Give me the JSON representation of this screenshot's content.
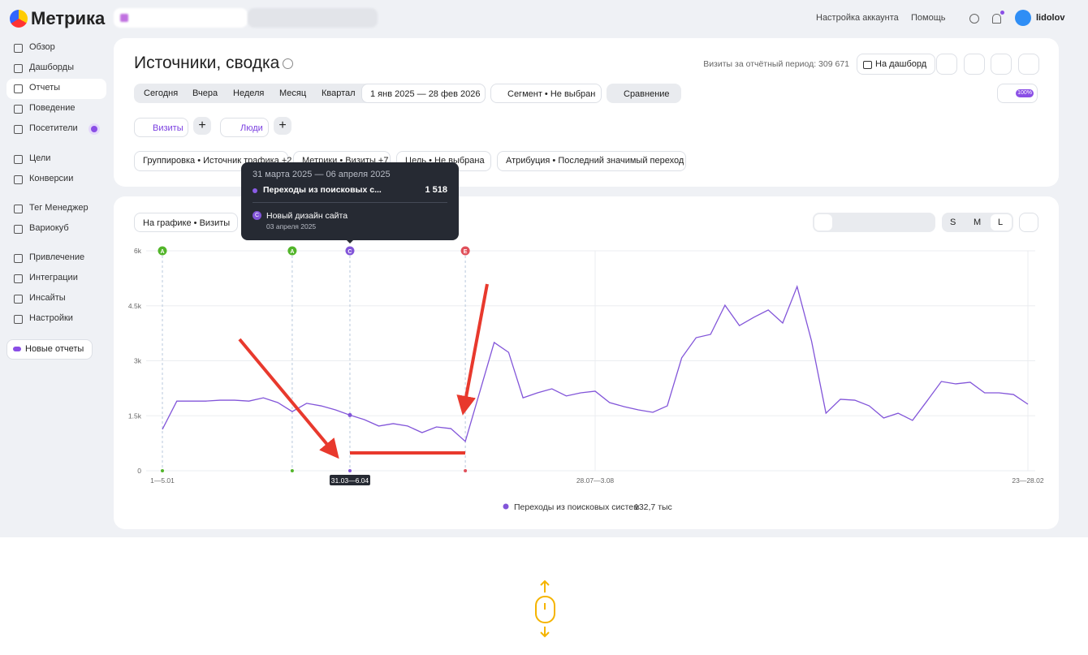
{
  "app": {
    "logo": "Метрика",
    "account_settings": "Настройка аккаунта",
    "help": "Помощь",
    "user": "lidolov"
  },
  "sidebar": {
    "items": [
      "Обзор",
      "Дашборды",
      "Отчеты",
      "Поведение",
      "Посетители",
      "Цели",
      "Конверсии",
      "Тег Менеджер",
      "Вариокуб",
      "Привлечение",
      "Интеграции",
      "Инсайты",
      "Настройки"
    ],
    "new_reports": "Новые отчеты"
  },
  "header": {
    "title": "Источники, сводка",
    "visits_label": "Визиты за отчётный период: 309 671",
    "dashboard": "На дашборд"
  },
  "periods": [
    "Сегодня",
    "Вчера",
    "Неделя",
    "Месяц",
    "Квартал"
  ],
  "date_range": "1 янв 2025 — 28 фев 2026",
  "segment": "Сегмент • Не выбран",
  "compare": "Сравнение",
  "badge": "100%",
  "tabs": [
    "Визиты",
    "Люди"
  ],
  "filters": [
    "Группировка • Источник трафика +2",
    "Метрики • Визиты +7",
    "Цель • Не выбрана",
    "Атрибуция • Последний значимый переход"
  ],
  "chart_controls": {
    "chart_select": "На графике • Визиты",
    "sizes": [
      "S",
      "M",
      "L"
    ]
  },
  "chart_data": {
    "type": "line",
    "categories": [
      "1—5.01",
      null,
      null,
      null,
      null,
      null,
      null,
      null,
      null,
      null,
      null,
      null,
      null,
      "31.03—6.04",
      null,
      null,
      null,
      null,
      null,
      null,
      null,
      null,
      null,
      null,
      null,
      null,
      null,
      null,
      null,
      null,
      "28.07—3.08",
      null,
      null,
      null,
      null,
      null,
      null,
      null,
      null,
      null,
      null,
      null,
      null,
      null,
      null,
      null,
      null,
      null,
      null,
      null,
      null,
      null,
      null,
      null,
      null,
      null,
      null,
      null,
      null,
      null,
      "23—28.02"
    ],
    "series": [
      {
        "name": "Переходы из поисковых систем",
        "color": "#8255d9",
        "total_label": "132,7 тыс",
        "values": [
          1130,
          1900,
          1900,
          1900,
          1925,
          1925,
          1900,
          1990,
          1860,
          1615,
          1840,
          1770,
          1660,
          1518,
          1395,
          1220,
          1285,
          1220,
          1040,
          1195,
          1150,
          800,
          2150,
          3500,
          3230,
          1990,
          2125,
          2235,
          2040,
          2125,
          2170,
          1860,
          1750,
          1660,
          1595,
          1770,
          3080,
          3630,
          3720,
          4515,
          3960,
          4185,
          4385,
          4030,
          5025,
          3540,
          1570,
          1950,
          1925,
          1770,
          1440,
          1570,
          1375,
          1900,
          2435,
          2370,
          2415,
          2125,
          2125,
          2080,
          1815
        ]
      }
    ],
    "ylim": [
      0,
      6000
    ],
    "yticks": [
      0,
      {
        "value": 1500,
        "label": "1.5k"
      },
      {
        "value": 3000,
        "label": "3k"
      },
      {
        "value": 4500,
        "label": "4.5k"
      },
      {
        "value": 6000,
        "label": "6k"
      }
    ],
    "grid": true,
    "highlight": 13,
    "annotations": [
      {
        "label": "A",
        "index": 0,
        "color": "#52b52a"
      },
      {
        "label": "A",
        "index": 9,
        "color": "#52b52a"
      },
      {
        "label": "C",
        "index": 13,
        "color": "#8255d9"
      },
      {
        "label": "E",
        "index": 21,
        "color": "#e0505a"
      }
    ]
  },
  "tooltip": {
    "period": "31 марта 2025 — 06 апреля 2025",
    "series": "Переходы из поисковых с...",
    "value": 1518,
    "value_label": "1 518",
    "badge": "C",
    "event": "Новый дизайн сайта",
    "event_date": "03 апреля 2025"
  }
}
